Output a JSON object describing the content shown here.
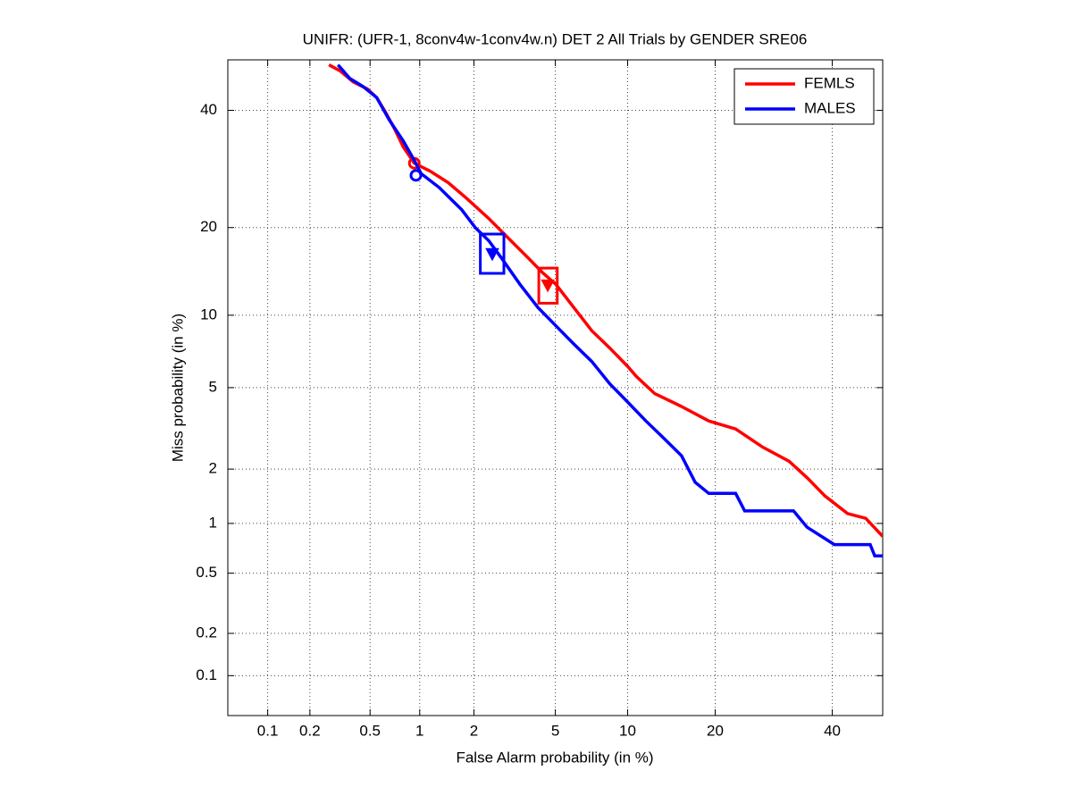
{
  "chart_data": {
    "type": "det",
    "title": "UNIFR: (UFR-1, 8conv4w-1conv4w.n) DET 2 All Trials by GENDER SRE06",
    "xlabel": "False Alarm probability (in %)",
    "ylabel": "Miss probability (in %)",
    "scale": "probit",
    "xlim": [
      0.05,
      50
    ],
    "ylim": [
      0.05,
      50
    ],
    "xticks": [
      0.1,
      0.2,
      0.5,
      1,
      2,
      5,
      10,
      20,
      40
    ],
    "yticks": [
      0.1,
      0.2,
      0.5,
      1,
      2,
      5,
      10,
      20,
      40
    ],
    "grid": true,
    "legend": "upper right",
    "series": [
      {
        "name": "FEMLS",
        "color": "#ff0000",
        "x": [
          0.27,
          0.32,
          0.39,
          0.48,
          0.55,
          0.62,
          0.71,
          0.8,
          0.93,
          1.15,
          1.45,
          1.82,
          2.39,
          3.09,
          3.78,
          4.36,
          5.03,
          6.03,
          7.19,
          8.52,
          10.0,
          10.8,
          12.6,
          15.6,
          19.1,
          23.0,
          27.3,
          31.9,
          35.2,
          38.6,
          43.0,
          46.6,
          50
        ],
        "values": [
          49,
          47.8,
          45.6,
          44.2,
          42.5,
          39.8,
          36.4,
          33.1,
          30.2,
          28.8,
          26.9,
          24.4,
          21.3,
          18.2,
          15.9,
          14.3,
          13.0,
          10.7,
          8.7,
          7.4,
          6.2,
          5.6,
          4.7,
          4.1,
          3.5,
          3.2,
          2.6,
          2.2,
          1.8,
          1.43,
          1.14,
          1.07,
          0.84
        ],
        "circle": [
          0.93,
          30.2
        ],
        "triangle": [
          4.62,
          12.9
        ],
        "box": {
          "x": [
            4.2,
            5.1
          ],
          "y": [
            11.1,
            14.8
          ]
        }
      },
      {
        "name": "MALES",
        "color": "#0000ff",
        "x": [
          0.31,
          0.37,
          0.45,
          0.55,
          0.66,
          0.8,
          0.93,
          1.02,
          1.29,
          1.72,
          2.03,
          2.39,
          2.79,
          3.42,
          4.16,
          5.03,
          6.03,
          7.19,
          8.52,
          10.0,
          11.7,
          13.5,
          15.6,
          17.3,
          19.1,
          23.0,
          24.4,
          32.7,
          35.2,
          40.4,
          47.5,
          48.4,
          50
        ],
        "values": [
          49,
          46.3,
          44.7,
          42.5,
          38.1,
          34.2,
          30.7,
          28.4,
          26.1,
          22.6,
          20.0,
          18.2,
          15.9,
          13.0,
          10.7,
          9.1,
          7.7,
          6.5,
          5.2,
          4.3,
          3.5,
          2.9,
          2.35,
          1.7,
          1.48,
          1.48,
          1.18,
          1.18,
          0.95,
          0.75,
          0.75,
          0.64,
          0.64
        ],
        "circle": [
          0.95,
          28.1
        ],
        "triangle": [
          2.49,
          16.5
        ],
        "box": {
          "x": [
            2.16,
            2.85
          ],
          "y": [
            14.2,
            19.1
          ]
        }
      }
    ]
  }
}
